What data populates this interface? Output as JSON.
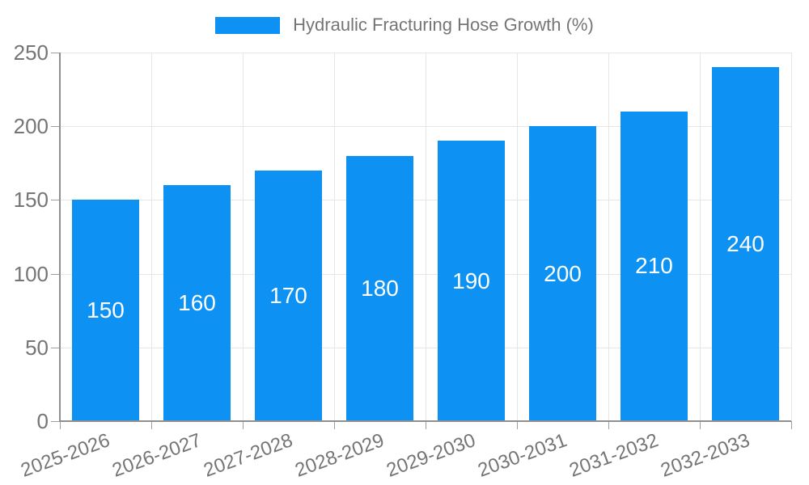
{
  "legend": {
    "label": "Hydraulic Fracturing Hose Growth (%)"
  },
  "chart_data": {
    "type": "bar",
    "title": "Hydraulic Fracturing Hose Growth (%)",
    "categories": [
      "2025-2026",
      "2026-2027",
      "2027-2028",
      "2028-2029",
      "2029-2030",
      "2030-2031",
      "2031-2032",
      "2032-2033"
    ],
    "values": [
      150,
      160,
      170,
      180,
      190,
      200,
      210,
      240
    ],
    "xlabel": "",
    "ylabel": "",
    "ylim": [
      0,
      250
    ],
    "yticks": [
      0,
      50,
      100,
      150,
      200,
      250
    ],
    "grid": true,
    "legend_position": "top-center",
    "bar_color": "#0D92F4",
    "value_label_color": "#ffffff",
    "axis_text_color": "#757575",
    "grid_color": "#e6e6e6",
    "axis_line_color": "#8f8f8f"
  }
}
